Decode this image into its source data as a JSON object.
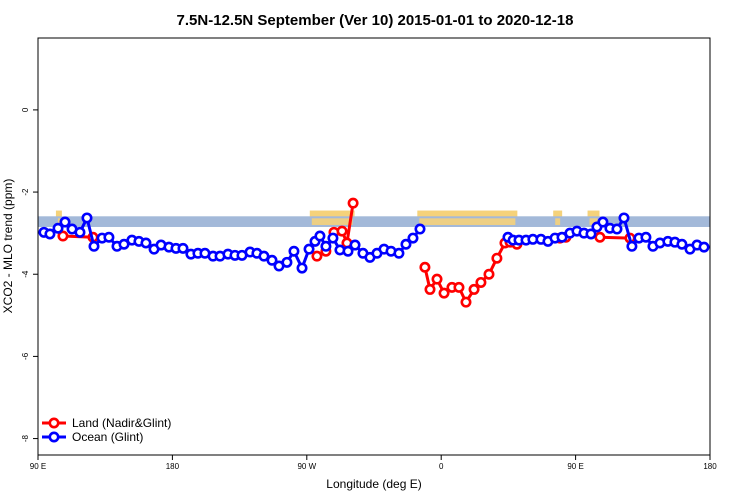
{
  "chart_data": {
    "type": "line",
    "title": "7.5N-12.5N September (Ver 10)   2015-01-01 to 2020-12-18",
    "x_label": "Longitude (deg E)",
    "y_label": "XCO2 - MLO trend (ppm)",
    "xlim": [
      90,
      540
    ],
    "xticks": [
      {
        "value": 90,
        "label": "90 E"
      },
      180,
      {
        "value": 270,
        "label": "90 W"
      },
      {
        "value": 360,
        "label": "0"
      },
      {
        "value": 450,
        "label": "90 E"
      },
      {
        "value": 540,
        "label": "180"
      }
    ],
    "ylim": [
      -8.4,
      1.75
    ],
    "yticks": [
      0,
      -2,
      -4,
      -6,
      -8
    ],
    "legend": "bottom-left",
    "band": {
      "color": "#a3b9d9",
      "range": [
        -2.85,
        -2.59
      ]
    },
    "land_regions": {
      "color": "#f5d27a",
      "top": -2.45,
      "spans": [
        [
          102,
          106
        ],
        [
          272,
          302
        ],
        [
          344,
          411
        ],
        [
          435,
          441
        ],
        [
          458,
          466
        ]
      ]
    },
    "series": [
      {
        "name": "Land (Nadir&Glint)",
        "color": "#ff0000",
        "x": [
          106.7,
          126.8,
          200,
          276.8,
          282.8,
          288.2,
          293.6,
          296.9,
          301.0,
          330,
          349.1,
          352.5,
          357.2,
          361.9,
          367.2,
          371.9,
          376.6,
          382.0,
          386.6,
          392.0,
          397.3,
          402.7,
          406.1,
          410.7,
          430,
          439.5,
          443.5,
          455,
          466.3,
          486.4
        ],
        "values": [
          -3.07,
          -3.1,
          null,
          -3.56,
          -3.44,
          -2.98,
          -2.95,
          -3.24,
          -2.27,
          null,
          -3.83,
          -4.37,
          -4.12,
          -4.46,
          -4.32,
          -4.32,
          -4.68,
          -4.37,
          -4.2,
          -4.0,
          -3.61,
          -3.24,
          -3.22,
          -3.27,
          null,
          -3.12,
          -3.1,
          null,
          -3.1,
          -3.12
        ]
      },
      {
        "name": "Ocean (Glint)",
        "color": "#0000ff",
        "x": [
          94.0,
          98.0,
          103.4,
          108.1,
          112.8,
          118.1,
          122.8,
          127.5,
          132.9,
          137.5,
          142.9,
          147.6,
          152.9,
          157.6,
          162.3,
          167.7,
          172.4,
          177.7,
          182.4,
          187.1,
          192.4,
          197.1,
          201.8,
          207.2,
          211.9,
          217.2,
          221.9,
          226.6,
          232.0,
          236.6,
          241.3,
          246.7,
          251.4,
          256.7,
          261.4,
          266.8,
          271.5,
          275.5,
          278.8,
          282.8,
          287.5,
          292.2,
          297.6,
          302.3,
          307.6,
          312.3,
          317.0,
          321.7,
          326.4,
          331.7,
          336.4,
          341.1,
          345.8,
          390,
          404.7,
          408.1,
          412.1,
          416.8,
          421.4,
          426.8,
          431.5,
          436.2,
          440.9,
          446.2,
          450.9,
          455.6,
          460.3,
          464.3,
          468.3,
          473.0,
          477.7,
          482.4,
          487.7,
          492.4,
          497.1,
          501.8,
          506.5,
          511.8,
          516.5,
          521.2,
          526.6,
          531.3,
          536.0
        ],
        "values": [
          -2.98,
          -3.02,
          -2.88,
          -2.73,
          -2.9,
          -2.98,
          -2.63,
          -3.32,
          -3.12,
          -3.1,
          -3.32,
          -3.27,
          -3.17,
          -3.2,
          -3.24,
          -3.39,
          -3.29,
          -3.34,
          -3.37,
          -3.37,
          -3.51,
          -3.49,
          -3.49,
          -3.56,
          -3.56,
          -3.51,
          -3.54,
          -3.54,
          -3.46,
          -3.49,
          -3.56,
          -3.66,
          -3.8,
          -3.71,
          -3.44,
          -3.85,
          -3.39,
          -3.2,
          -3.07,
          -3.32,
          -3.12,
          -3.41,
          -3.44,
          -3.29,
          -3.49,
          -3.59,
          -3.49,
          -3.39,
          -3.44,
          -3.49,
          -3.27,
          -3.12,
          -2.9,
          null,
          -3.1,
          -3.17,
          -3.17,
          -3.17,
          -3.15,
          -3.15,
          -3.2,
          -3.12,
          -3.1,
          -3.0,
          -2.95,
          -3.0,
          -3.02,
          -2.85,
          -2.73,
          -2.88,
          -2.9,
          -2.63,
          -3.32,
          -3.12,
          -3.1,
          -3.32,
          -3.24,
          -3.2,
          -3.22,
          -3.27,
          -3.39,
          -3.29,
          -3.34
        ]
      }
    ]
  }
}
